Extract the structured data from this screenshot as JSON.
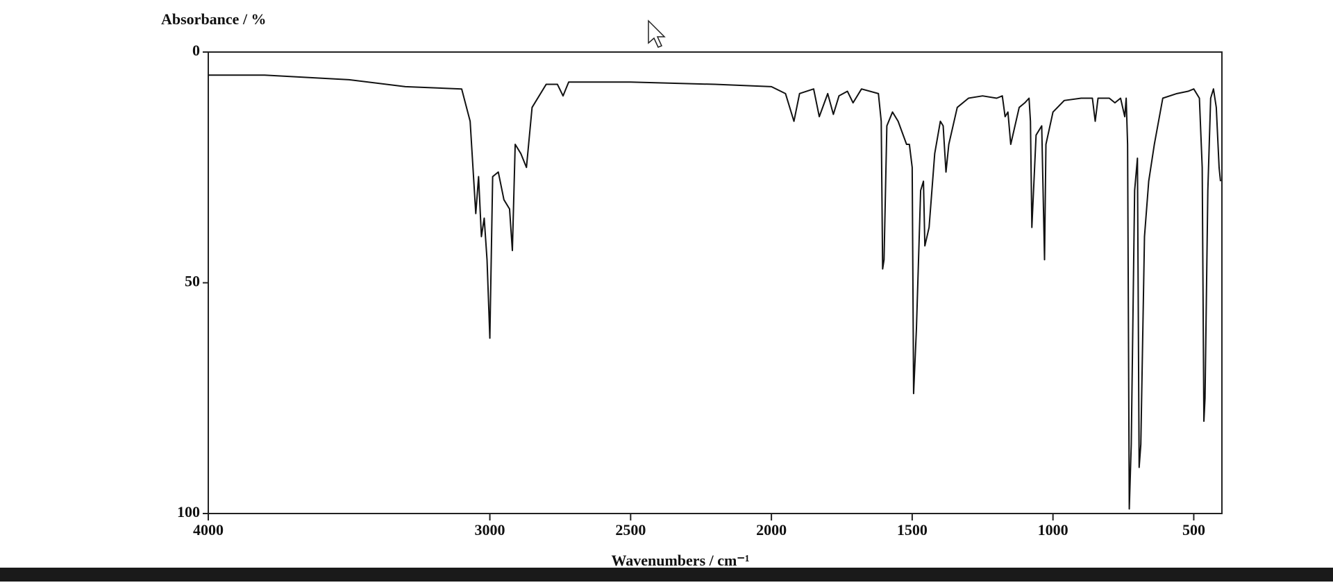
{
  "chart_data": {
    "type": "line",
    "ylabel": "Absorbance / %",
    "xlabel": "Wavenumbers / cm⁻¹",
    "color": "#111111",
    "xlim": [
      4000,
      400
    ],
    "ylim": [
      0,
      100
    ],
    "y_inverted": true,
    "xticks": [
      4000,
      3000,
      2500,
      2000,
      1500,
      1000,
      500
    ],
    "yticks": [
      0,
      50,
      100
    ],
    "grid": false,
    "x": [
      4000,
      3800,
      3500,
      3300,
      3100,
      3070,
      3050,
      3040,
      3030,
      3020,
      3010,
      3000,
      2990,
      2970,
      2950,
      2930,
      2920,
      2910,
      2890,
      2870,
      2850,
      2800,
      2760,
      2740,
      2720,
      2500,
      2200,
      2000,
      1950,
      1920,
      1900,
      1850,
      1830,
      1800,
      1780,
      1760,
      1730,
      1710,
      1680,
      1620,
      1610,
      1605,
      1600,
      1590,
      1570,
      1550,
      1520,
      1510,
      1500,
      1495,
      1485,
      1470,
      1460,
      1455,
      1440,
      1420,
      1400,
      1390,
      1380,
      1370,
      1340,
      1300,
      1250,
      1200,
      1180,
      1170,
      1160,
      1150,
      1120,
      1100,
      1085,
      1080,
      1075,
      1060,
      1040,
      1030,
      1025,
      1000,
      960,
      900,
      860,
      850,
      840,
      800,
      780,
      760,
      745,
      740,
      735,
      729,
      722,
      710,
      700,
      694,
      688,
      675,
      660,
      640,
      610,
      560,
      520,
      500,
      480,
      470,
      464,
      460,
      450,
      440,
      430,
      420,
      410,
      405
    ],
    "values": [
      5,
      5,
      6,
      7.5,
      8,
      15,
      35,
      27,
      40,
      36,
      45,
      62,
      27,
      26,
      32,
      34,
      43,
      20,
      22,
      25,
      12,
      7,
      7,
      9.5,
      6.5,
      6.5,
      7,
      7.5,
      9,
      15,
      9,
      8,
      14,
      9,
      13.5,
      9.5,
      8.5,
      11,
      8,
      9,
      15,
      47,
      45,
      16,
      13,
      15,
      20,
      20,
      25,
      74,
      60,
      30,
      28,
      42,
      38,
      22,
      15,
      16,
      26,
      20,
      12,
      10,
      9.5,
      10,
      9.5,
      14,
      13,
      20,
      12,
      11,
      10,
      15,
      38,
      18,
      16,
      45,
      20,
      13,
      10.5,
      10,
      10,
      15,
      10,
      10,
      11,
      10,
      14,
      10,
      20,
      99,
      85,
      30,
      23,
      90,
      85,
      40,
      28,
      20,
      10,
      9,
      8.5,
      8,
      10,
      25,
      80,
      75,
      30,
      10,
      8,
      12,
      25,
      28
    ]
  }
}
